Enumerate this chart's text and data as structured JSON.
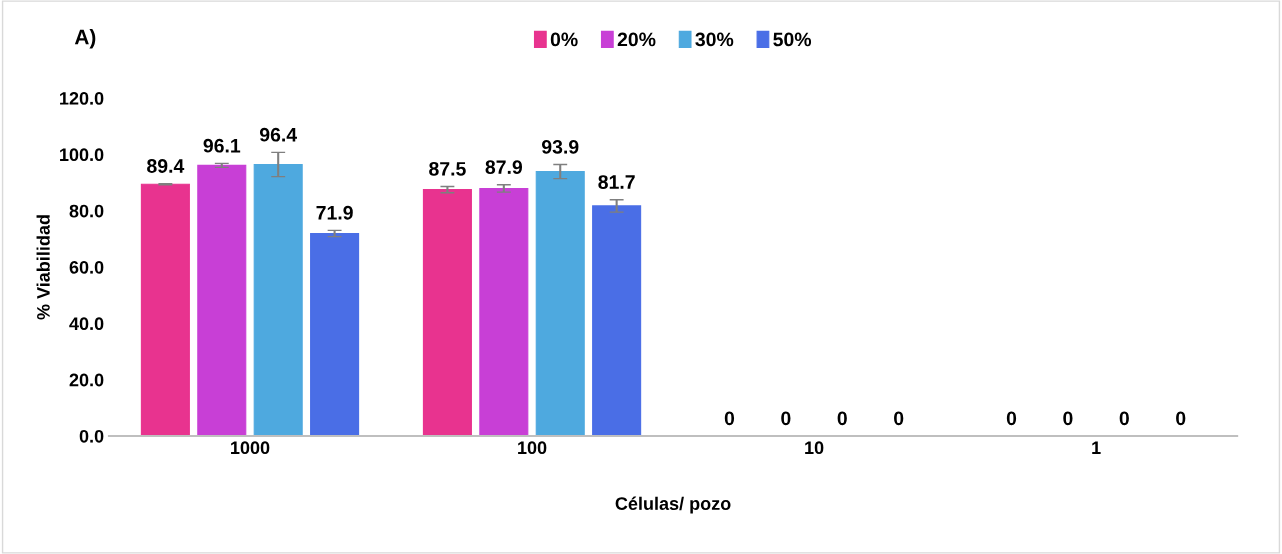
{
  "chart_data": {
    "type": "bar",
    "xlabel": "Células/ pozo",
    "ylabel": "% Viabilidad",
    "annotations": [
      "A)"
    ],
    "categories": [
      "1000",
      "100",
      "10",
      "1"
    ],
    "series": [
      {
        "name": "0%",
        "color": "#e8338f",
        "values": [
          89.4,
          87.5,
          0,
          0
        ],
        "errors": [
          0.2,
          1.1,
          null,
          null
        ]
      },
      {
        "name": "20%",
        "color": "#c83fd6",
        "values": [
          96.1,
          87.9,
          0,
          0
        ],
        "errors": [
          0.7,
          1.3,
          null,
          null
        ]
      },
      {
        "name": "30%",
        "color": "#4ea9df",
        "values": [
          96.4,
          93.9,
          0,
          0
        ],
        "errors": [
          4.3,
          2.5,
          null,
          null
        ]
      },
      {
        "name": "50%",
        "color": "#4a6ee6",
        "values": [
          71.9,
          81.7,
          0,
          0
        ],
        "errors": [
          1.1,
          2.2,
          null,
          null
        ]
      }
    ],
    "ylim": [
      0,
      120
    ],
    "yticks": [
      {
        "value": 0,
        "label": "0.0"
      },
      {
        "value": 20,
        "label": "20.0"
      },
      {
        "value": 40,
        "label": "40.0"
      },
      {
        "value": 60,
        "label": "60.0"
      },
      {
        "value": 80,
        "label": "80.0"
      },
      {
        "value": 100,
        "label": "100.0"
      },
      {
        "value": 120,
        "label": "120.0"
      }
    ],
    "data_labels": true,
    "legend": "top",
    "grid": false
  }
}
